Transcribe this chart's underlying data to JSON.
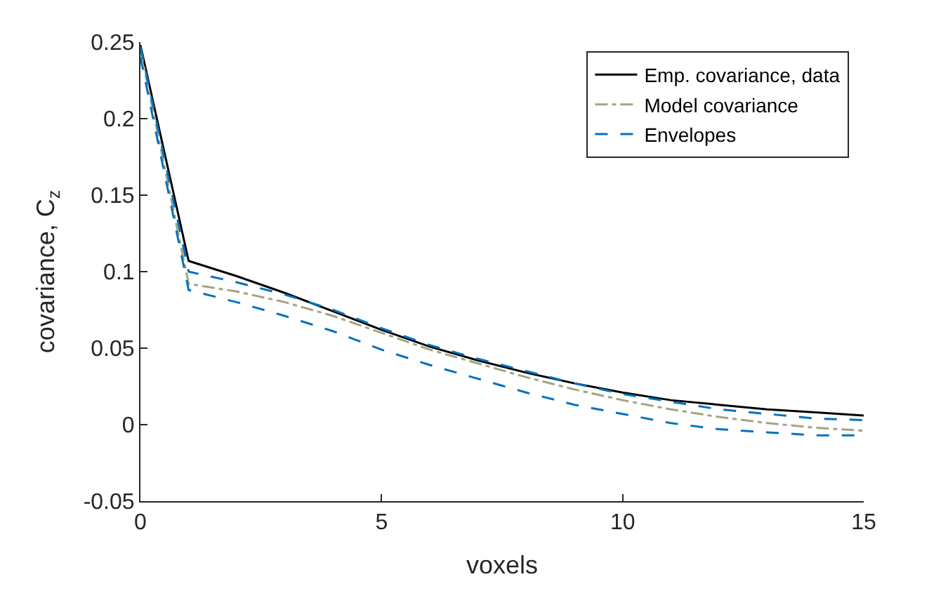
{
  "chart_data": {
    "type": "line",
    "xlabel": "voxels",
    "ylabel": "covariance, C$_{z}$",
    "x": [
      0,
      1,
      2,
      3,
      4,
      5,
      6,
      7,
      8,
      9,
      10,
      11,
      12,
      13,
      14,
      15
    ],
    "series": [
      {
        "name": "Emp. covariance, data",
        "color": "#000000",
        "line_style": "solid",
        "values": [
          0.248,
          0.107,
          0.097,
          0.086,
          0.074,
          0.062,
          0.051,
          0.042,
          0.034,
          0.027,
          0.021,
          0.016,
          0.013,
          0.01,
          0.008,
          0.006
        ]
      },
      {
        "name": "Model covariance",
        "color": "#a3a382",
        "line_style": "dashdot",
        "values": [
          0.245,
          0.092,
          0.087,
          0.08,
          0.071,
          0.06,
          0.049,
          0.04,
          0.031,
          0.023,
          0.016,
          0.01,
          0.005,
          0.001,
          -0.002,
          -0.004
        ]
      },
      {
        "name": "Envelopes",
        "color": "#0072bd",
        "line_style": "dashed",
        "values": [
          0.247,
          0.1,
          0.093,
          0.085,
          0.075,
          0.063,
          0.052,
          0.043,
          0.035,
          0.027,
          0.02,
          0.015,
          0.01,
          0.007,
          0.004,
          0.003
        ]
      },
      {
        "color": "#0072bd",
        "line_style": "dashed",
        "values": [
          0.24,
          0.088,
          0.08,
          0.071,
          0.061,
          0.049,
          0.039,
          0.03,
          0.021,
          0.013,
          0.007,
          0.001,
          -0.003,
          -0.005,
          -0.007,
          -0.007
        ]
      }
    ],
    "xlim": [
      0,
      15
    ],
    "xticks": [
      0,
      5,
      10,
      15
    ],
    "ylim": [
      -0.05,
      0.25
    ],
    "yticks": [
      -0.05,
      0,
      0.05,
      0.1,
      0.15,
      0.2,
      0.25
    ],
    "legend": "top right",
    "marker": "none"
  }
}
